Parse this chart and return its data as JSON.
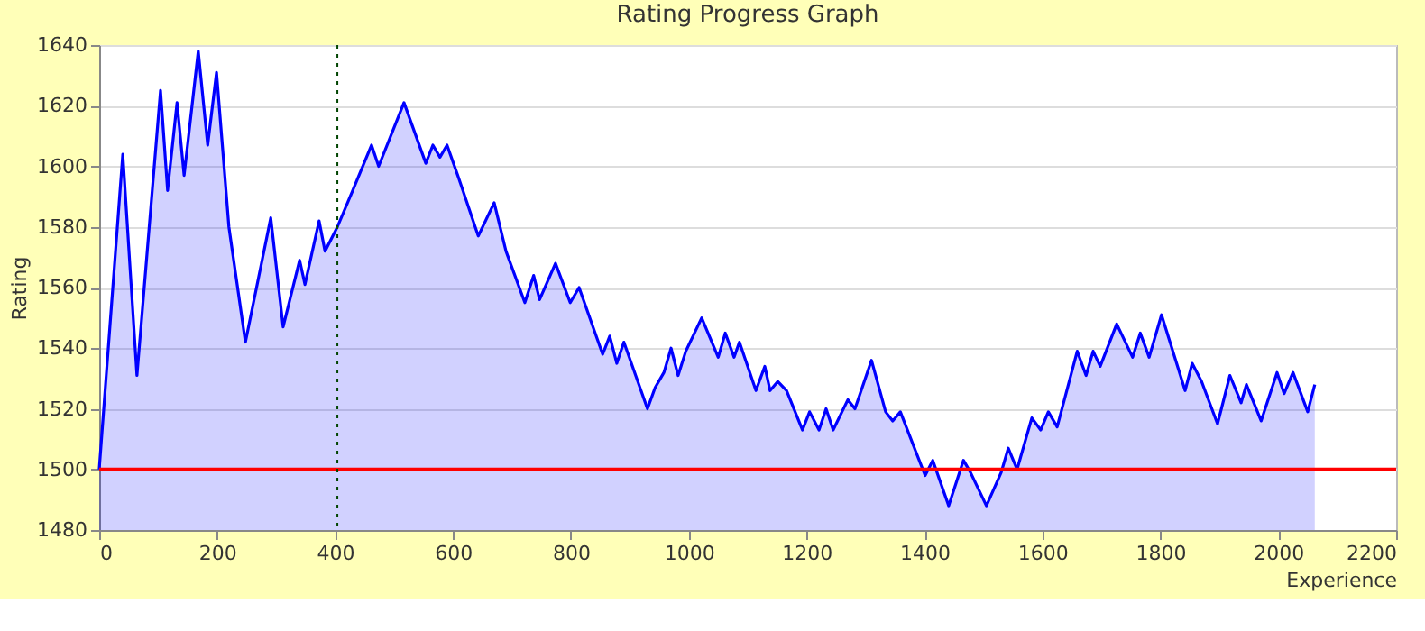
{
  "chart_data": {
    "type": "area",
    "title": "Rating Progress Graph",
    "xlabel": "Experience",
    "ylabel": "Rating",
    "series": [
      {
        "color": "#0000ff",
        "x": [
          0,
          40,
          64,
          104,
          116,
          132,
          144,
          168,
          184,
          199,
          220,
          248,
          291,
          312,
          340,
          349,
          373,
          383,
          404,
          430,
          462,
          474,
          517,
          554,
          566,
          578,
          590,
          610,
          643,
          670,
          690,
          722,
          737,
          747,
          774,
          799,
          814,
          854,
          866,
          878,
          890,
          930,
          943,
          958,
          970,
          982,
          995,
          1022,
          1050,
          1062,
          1077,
          1086,
          1114,
          1129,
          1138,
          1151,
          1166,
          1193,
          1205,
          1221,
          1233,
          1245,
          1270,
          1282,
          1310,
          1334,
          1346,
          1359,
          1401,
          1414,
          1441,
          1466,
          1478,
          1505,
          1530,
          1542,
          1557,
          1582,
          1597,
          1610,
          1625,
          1659,
          1674,
          1686,
          1698,
          1726,
          1753,
          1766,
          1781,
          1802,
          1842,
          1854,
          1870,
          1897,
          1918,
          1937,
          1946,
          1971,
          1998,
          2010,
          2025,
          2050,
          2062
        ],
        "values": [
          1500,
          1604,
          1531,
          1625,
          1592,
          1621,
          1597,
          1638,
          1607,
          1631,
          1580,
          1542,
          1583,
          1547,
          1569,
          1561,
          1582,
          1572,
          1580,
          1592,
          1607,
          1600,
          1621,
          1601,
          1607,
          1603,
          1607,
          1596,
          1577,
          1588,
          1572,
          1555,
          1564,
          1556,
          1568,
          1555,
          1560,
          1538,
          1544,
          1535,
          1542,
          1520,
          1527,
          1532,
          1540,
          1531,
          1539,
          1550,
          1537,
          1545,
          1537,
          1542,
          1526,
          1534,
          1526,
          1529,
          1526,
          1513,
          1519,
          1513,
          1520,
          1513,
          1523,
          1520,
          1536,
          1519,
          1516,
          1519,
          1498,
          1503,
          1488,
          1503,
          1499,
          1488,
          1499,
          1507,
          1500,
          1517,
          1513,
          1519,
          1514,
          1539,
          1531,
          1539,
          1534,
          1548,
          1537,
          1545,
          1537,
          1551,
          1526,
          1535,
          1529,
          1515,
          1531,
          1522,
          1528,
          1516,
          1532,
          1525,
          1532,
          1519,
          1528
        ]
      }
    ],
    "xlim": [
      0,
      2200
    ],
    "xticks": [
      0,
      200,
      400,
      600,
      800,
      1000,
      1200,
      1400,
      1600,
      1800,
      2000,
      2200
    ],
    "ylim": [
      1480,
      1640
    ],
    "yticks": [
      1480,
      1500,
      1520,
      1540,
      1560,
      1580,
      1600,
      1620,
      1640
    ],
    "ref_lines": [
      {
        "axis": "y",
        "value": 1500,
        "color": "#ff0000",
        "line_style": "solid"
      },
      {
        "axis": "x",
        "value": 404,
        "color": "#004400",
        "line_style": "dotted"
      }
    ],
    "grid": "y"
  }
}
